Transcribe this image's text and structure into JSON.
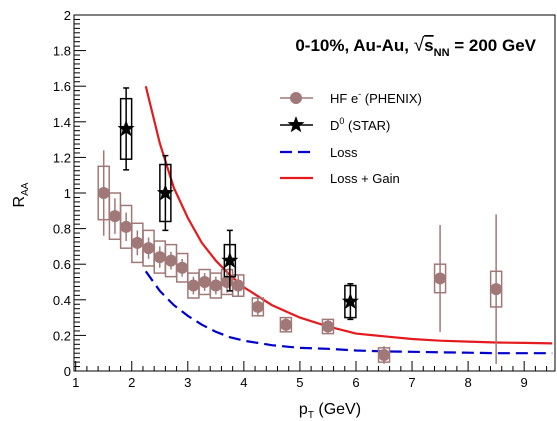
{
  "chart_data": {
    "type": "scatter",
    "title": "0-10%, Au-Au, √s_NN = 200 GeV",
    "title_parts": {
      "prefix": "0-10%, Au-Au, ",
      "sqrt_s": "s",
      "sub": "NN",
      "suffix": " = 200 GeV"
    },
    "xlabel": {
      "main": "p",
      "sub": "T",
      "rest": " (GeV)"
    },
    "ylabel": {
      "main": "R",
      "sub": "AA"
    },
    "xlim": [
      0.97,
      9.55
    ],
    "ylim": [
      0,
      2
    ],
    "xticks": [
      1,
      2,
      3,
      4,
      5,
      6,
      7,
      8,
      9
    ],
    "yticks": [
      0,
      0.2,
      0.4,
      0.6,
      0.8,
      1,
      1.2,
      1.4,
      1.6,
      1.8,
      2
    ],
    "series": [
      {
        "name": "HF e⁻ (PHENIX)",
        "legend": {
          "main": "HF e",
          "sup": "-",
          "rest": " (PHENIX)"
        },
        "marker": "circle",
        "color": "#a07878",
        "points": [
          {
            "x": 1.5,
            "y": 1.0,
            "err": 0.24,
            "sys": 0.15
          },
          {
            "x": 1.7,
            "y": 0.87,
            "err": 0.1,
            "sys": 0.13
          },
          {
            "x": 1.9,
            "y": 0.81,
            "err": 0.08,
            "sys": 0.12
          },
          {
            "x": 2.1,
            "y": 0.72,
            "err": 0.07,
            "sys": 0.11
          },
          {
            "x": 2.3,
            "y": 0.69,
            "err": 0.06,
            "sys": 0.1
          },
          {
            "x": 2.5,
            "y": 0.64,
            "err": 0.06,
            "sys": 0.09
          },
          {
            "x": 2.7,
            "y": 0.62,
            "err": 0.05,
            "sys": 0.09
          },
          {
            "x": 2.9,
            "y": 0.58,
            "err": 0.05,
            "sys": 0.08
          },
          {
            "x": 3.1,
            "y": 0.48,
            "err": 0.05,
            "sys": 0.07
          },
          {
            "x": 3.3,
            "y": 0.5,
            "err": 0.05,
            "sys": 0.07
          },
          {
            "x": 3.5,
            "y": 0.48,
            "err": 0.05,
            "sys": 0.07
          },
          {
            "x": 3.7,
            "y": 0.5,
            "err": 0.06,
            "sys": 0.07
          },
          {
            "x": 3.9,
            "y": 0.48,
            "err": 0.06,
            "sys": 0.06
          },
          {
            "x": 4.25,
            "y": 0.36,
            "err": 0.05,
            "sys": 0.05
          },
          {
            "x": 4.75,
            "y": 0.26,
            "err": 0.04,
            "sys": 0.04
          },
          {
            "x": 5.5,
            "y": 0.25,
            "err": 0.04,
            "sys": 0.04
          },
          {
            "x": 6.5,
            "y": 0.09,
            "err": 0.05,
            "sys": 0.04
          },
          {
            "x": 7.5,
            "y": 0.52,
            "err": 0.3,
            "sys": 0.08
          },
          {
            "x": 8.5,
            "y": 0.46,
            "err": 0.42,
            "sys": 0.1
          }
        ]
      },
      {
        "name": "D⁰ (STAR)",
        "legend": {
          "main": "D",
          "sup": "0",
          "rest": " (STAR)"
        },
        "marker": "star",
        "color": "#000000",
        "points": [
          {
            "x": 1.9,
            "y": 1.36,
            "err": 0.23,
            "sys": 0.17
          },
          {
            "x": 2.6,
            "y": 1.0,
            "err": 0.21,
            "sys": 0.16
          },
          {
            "x": 3.75,
            "y": 0.62,
            "err": 0.17,
            "sys": 0.09
          },
          {
            "x": 5.9,
            "y": 0.39,
            "err": 0.1,
            "sys": 0.09
          }
        ]
      },
      {
        "name": "Loss",
        "legend": {
          "main": "Loss"
        },
        "marker": "dashed-line",
        "color": "#0000cc",
        "x": [
          2.25,
          2.5,
          2.75,
          3.0,
          3.25,
          3.5,
          3.75,
          4.0,
          4.5,
          5.0,
          5.5,
          6.0,
          6.5,
          7.0,
          7.5,
          8.0,
          8.5,
          9.0,
          9.5
        ],
        "y": [
          0.56,
          0.45,
          0.37,
          0.31,
          0.26,
          0.22,
          0.19,
          0.17,
          0.145,
          0.13,
          0.125,
          0.115,
          0.11,
          0.108,
          0.105,
          0.103,
          0.1,
          0.1,
          0.1
        ]
      },
      {
        "name": "Loss + Gain",
        "legend": {
          "main": "Loss + Gain"
        },
        "marker": "solid-line",
        "color": "#e41a1c",
        "x": [
          2.25,
          2.5,
          2.75,
          3.0,
          3.25,
          3.5,
          3.75,
          4.0,
          4.5,
          5.0,
          5.5,
          6.0,
          6.5,
          7.0,
          7.5,
          8.0,
          8.5,
          9.0,
          9.5
        ],
        "y": [
          1.6,
          1.28,
          1.03,
          0.86,
          0.72,
          0.62,
          0.54,
          0.47,
          0.37,
          0.3,
          0.25,
          0.21,
          0.195,
          0.18,
          0.17,
          0.165,
          0.16,
          0.158,
          0.155
        ]
      }
    ],
    "legend_position": "top-right",
    "grid": false
  }
}
